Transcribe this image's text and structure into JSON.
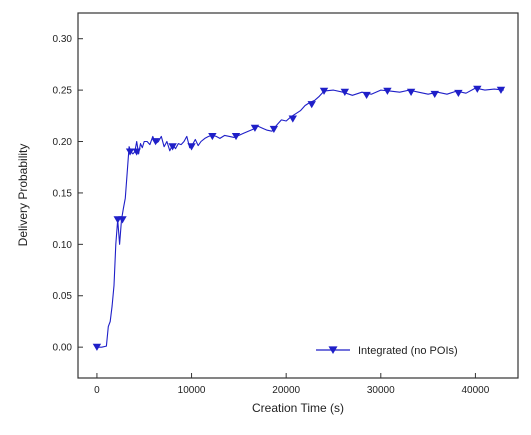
{
  "chart_data": {
    "type": "line",
    "xlabel": "Creation Time (s)",
    "ylabel": "Delivery Probability",
    "xlim": [
      -2000,
      44500
    ],
    "ylim": [
      -0.03,
      0.325
    ],
    "xticks": [
      0,
      10000,
      20000,
      30000,
      40000
    ],
    "xtick_labels": [
      "0",
      "10000",
      "20000",
      "30000",
      "40000"
    ],
    "yticks": [
      0.0,
      0.05,
      0.1,
      0.15,
      0.2,
      0.25,
      0.3
    ],
    "ytick_labels": [
      "0.00",
      "0.05",
      "0.10",
      "0.15",
      "0.20",
      "0.25",
      "0.30"
    ],
    "grid": false,
    "legend_position": "bottom-right",
    "series": [
      {
        "name": "Integrated (no POIs)",
        "color": "#1f1fc8",
        "marker": "triangle-down",
        "x": [
          0,
          500,
          1000,
          1200,
          1400,
          1600,
          1800,
          2000,
          2200,
          2400,
          2600,
          2800,
          3000,
          3200,
          3400,
          3600,
          3800,
          4000,
          4200,
          4400,
          4600,
          4800,
          5000,
          5300,
          5600,
          5900,
          6200,
          6500,
          6800,
          7100,
          7400,
          7700,
          8000,
          8300,
          8600,
          8900,
          9200,
          9500,
          9800,
          10100,
          10400,
          10700,
          11000,
          11400,
          11800,
          12200,
          12600,
          13000,
          13500,
          14000,
          14500,
          15000,
          15500,
          16000,
          16500,
          17000,
          17500,
          18000,
          18500,
          19000,
          19500,
          20000,
          20500,
          21000,
          21500,
          22000,
          22500,
          23000,
          23500,
          24000,
          25000,
          26000,
          27000,
          28000,
          29000,
          30000,
          31000,
          32000,
          33000,
          34000,
          35000,
          36000,
          37000,
          38000,
          39000,
          40000,
          41000,
          42000,
          43000
        ],
        "y": [
          0.0,
          0.0,
          0.001,
          0.02,
          0.025,
          0.04,
          0.06,
          0.1,
          0.124,
          0.1,
          0.124,
          0.135,
          0.145,
          0.17,
          0.195,
          0.19,
          0.188,
          0.19,
          0.2,
          0.188,
          0.198,
          0.194,
          0.2,
          0.2,
          0.197,
          0.205,
          0.198,
          0.2,
          0.205,
          0.195,
          0.2,
          0.191,
          0.197,
          0.193,
          0.198,
          0.197,
          0.2,
          0.205,
          0.194,
          0.197,
          0.202,
          0.196,
          0.2,
          0.203,
          0.205,
          0.206,
          0.205,
          0.203,
          0.206,
          0.205,
          0.204,
          0.206,
          0.208,
          0.21,
          0.212,
          0.215,
          0.213,
          0.211,
          0.21,
          0.216,
          0.221,
          0.22,
          0.224,
          0.227,
          0.23,
          0.235,
          0.238,
          0.24,
          0.244,
          0.249,
          0.25,
          0.248,
          0.245,
          0.248,
          0.246,
          0.25,
          0.249,
          0.248,
          0.25,
          0.248,
          0.246,
          0.248,
          0.246,
          0.249,
          0.247,
          0.252,
          0.25,
          0.251,
          0.25
        ],
        "marker_x": [
          0,
          2200,
          2700,
          3500,
          4200,
          6200,
          8000,
          10000,
          12200,
          14700,
          16700,
          18700,
          20700,
          22700,
          24000,
          26200,
          28500,
          30700,
          33200,
          35700,
          38200,
          40200,
          42700
        ],
        "marker_y": [
          0.0,
          0.124,
          0.124,
          0.19,
          0.19,
          0.2,
          0.195,
          0.195,
          0.205,
          0.205,
          0.213,
          0.212,
          0.222,
          0.236,
          0.249,
          0.248,
          0.245,
          0.249,
          0.248,
          0.246,
          0.247,
          0.251,
          0.25
        ]
      }
    ]
  }
}
